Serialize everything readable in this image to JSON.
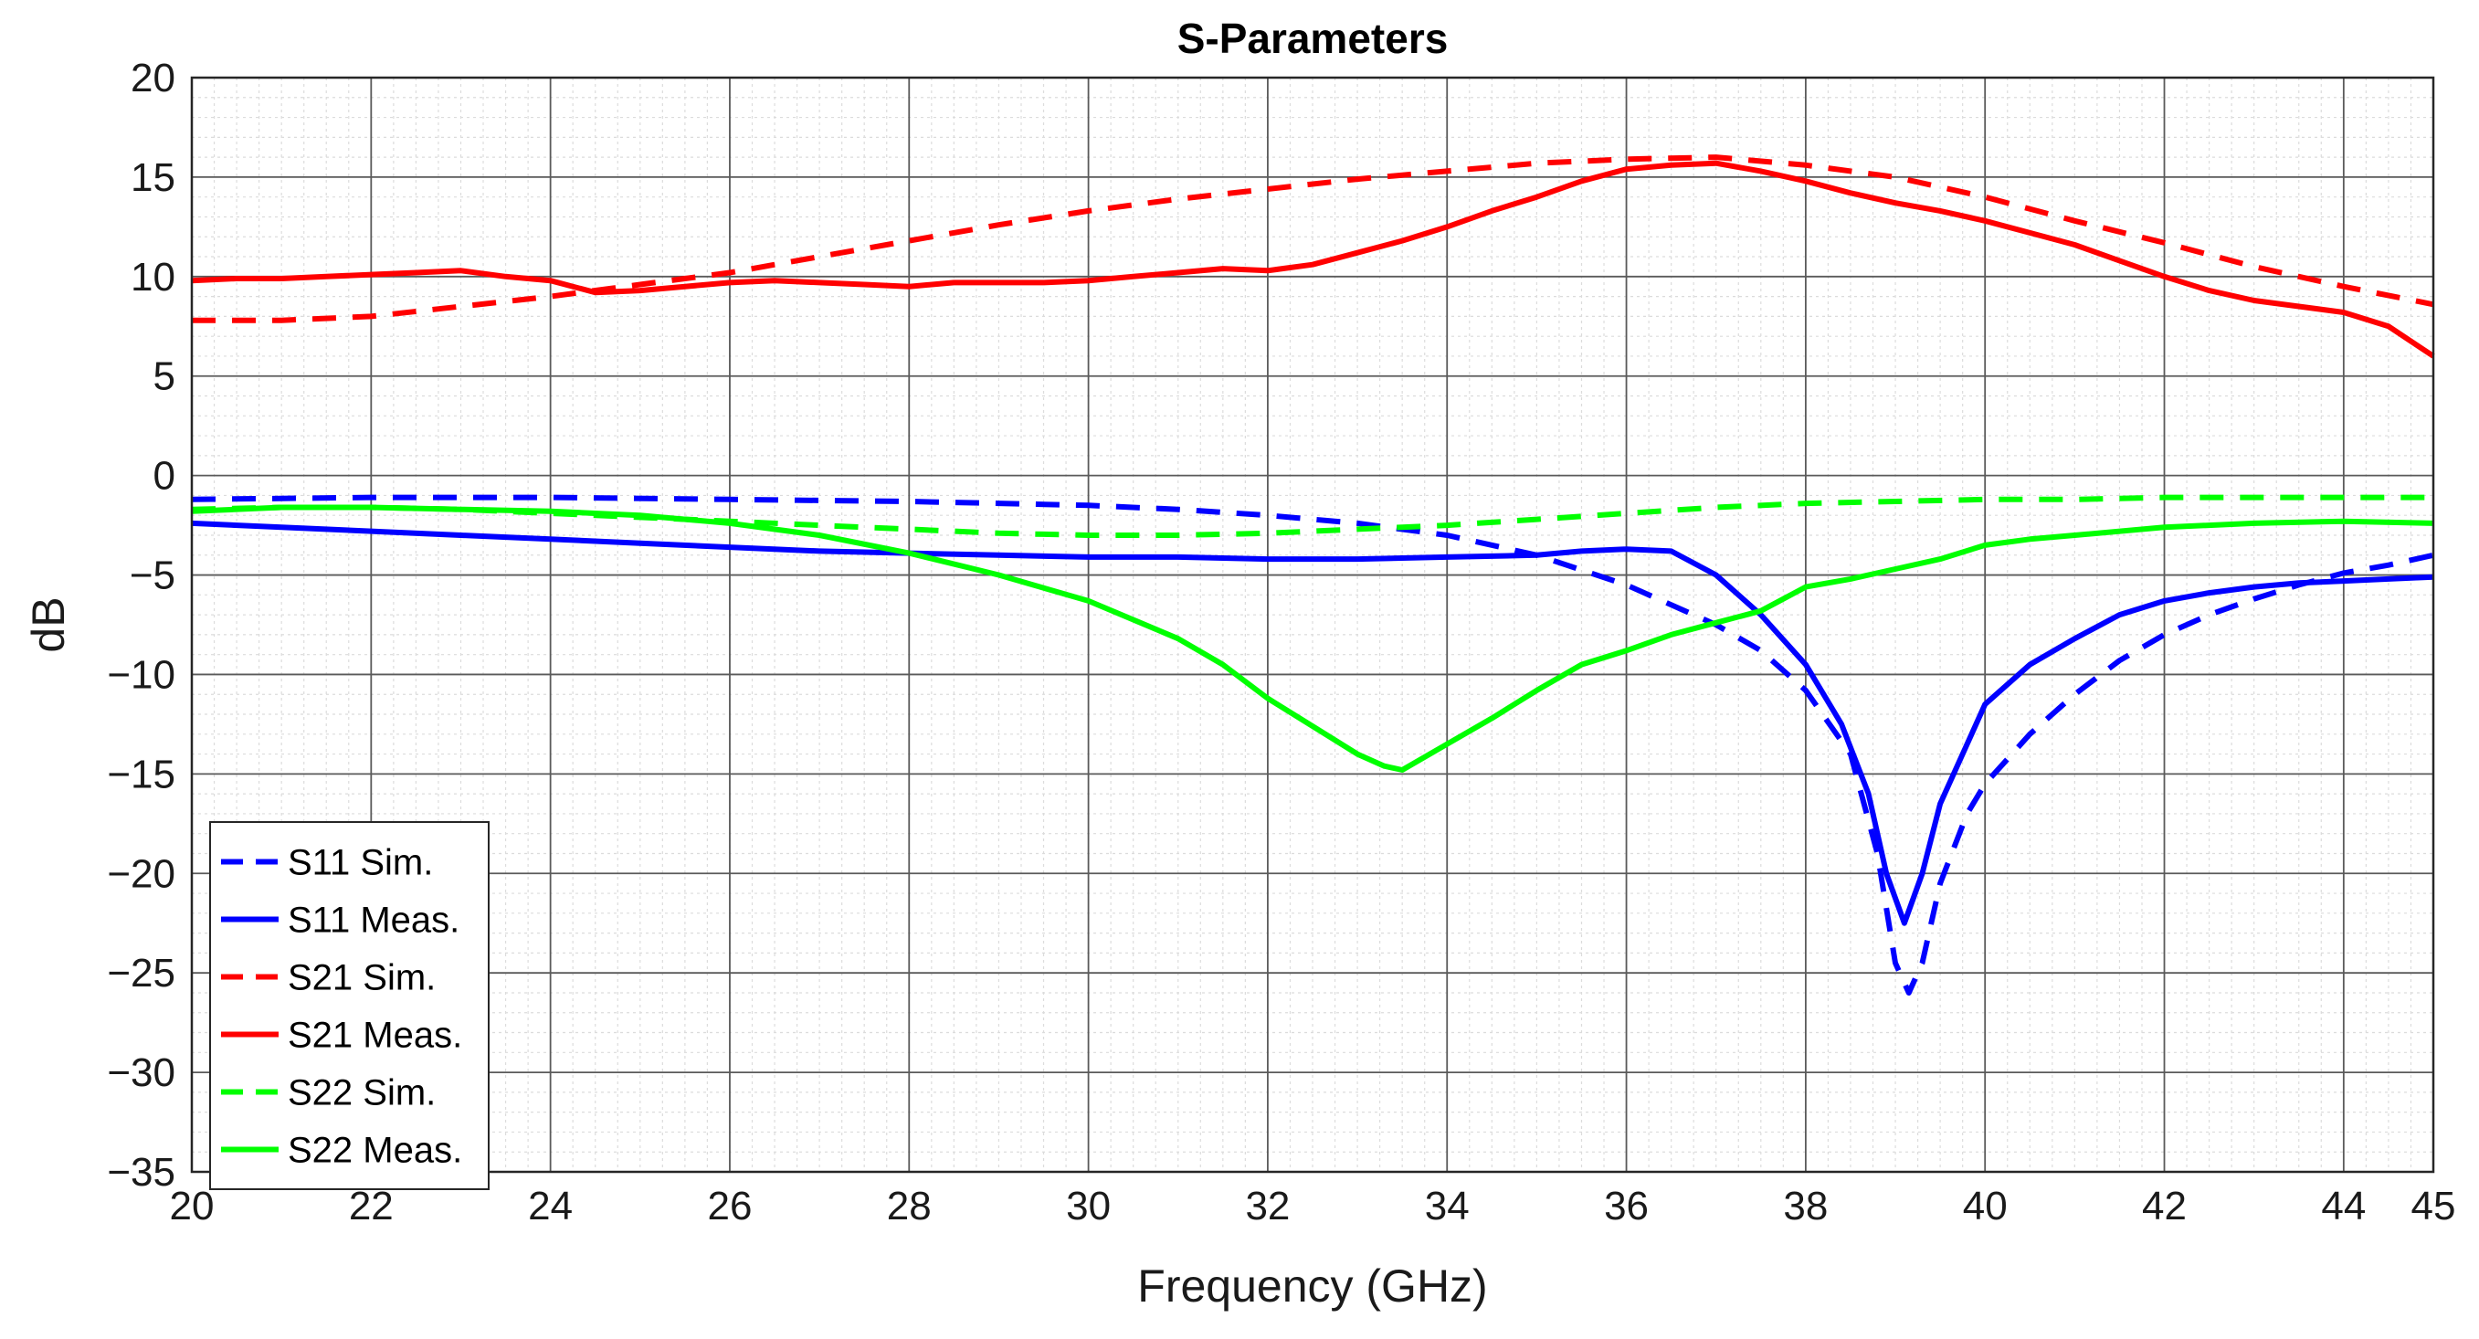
{
  "chart_data": {
    "type": "line",
    "title": "S-Parameters",
    "xlabel": "Frequency (GHz)",
    "ylabel": "dB",
    "xlim": [
      20,
      45
    ],
    "ylim": [
      -35,
      20
    ],
    "x_ticks": [
      20,
      22,
      24,
      26,
      28,
      30,
      32,
      34,
      36,
      38,
      40,
      42,
      44,
      45
    ],
    "x_tick_labels": [
      "20",
      "22",
      "24",
      "26",
      "28",
      "30",
      "32",
      "34",
      "36",
      "38",
      "40",
      "42",
      "44",
      "45"
    ],
    "y_ticks": [
      -35,
      -30,
      -25,
      -20,
      -15,
      -10,
      -5,
      0,
      5,
      10,
      15,
      20
    ],
    "y_tick_labels": [
      "−35",
      "−30",
      "−25",
      "−20",
      "−15",
      "−10",
      "−5",
      "0",
      "5",
      "10",
      "15",
      "20"
    ],
    "grid": true,
    "minor_grid": true,
    "legend_position": "bottom-left",
    "series": [
      {
        "name": "S11 Sim.",
        "color": "#0000ff",
        "dash": "dashed",
        "points": [
          [
            20,
            -1.2
          ],
          [
            22,
            -1.1
          ],
          [
            24,
            -1.1
          ],
          [
            26,
            -1.2
          ],
          [
            28,
            -1.3
          ],
          [
            29,
            -1.4
          ],
          [
            30,
            -1.5
          ],
          [
            31,
            -1.7
          ],
          [
            32,
            -2.0
          ],
          [
            33,
            -2.4
          ],
          [
            34,
            -3.0
          ],
          [
            35,
            -4.0
          ],
          [
            36,
            -5.5
          ],
          [
            37,
            -7.5
          ],
          [
            37.5,
            -8.8
          ],
          [
            38,
            -10.8
          ],
          [
            38.5,
            -14.0
          ],
          [
            38.8,
            -19.0
          ],
          [
            39.0,
            -24.5
          ],
          [
            39.15,
            -26.0
          ],
          [
            39.3,
            -24.5
          ],
          [
            39.5,
            -20.5
          ],
          [
            39.8,
            -17.0
          ],
          [
            40,
            -15.5
          ],
          [
            40.5,
            -13.0
          ],
          [
            41,
            -11.0
          ],
          [
            41.5,
            -9.3
          ],
          [
            42,
            -8.0
          ],
          [
            42.5,
            -7.0
          ],
          [
            43,
            -6.2
          ],
          [
            43.5,
            -5.5
          ],
          [
            44,
            -4.9
          ],
          [
            44.5,
            -4.5
          ],
          [
            45,
            -4.0
          ]
        ]
      },
      {
        "name": "S11 Meas.",
        "color": "#0000ff",
        "dash": "solid",
        "points": [
          [
            20,
            -2.4
          ],
          [
            21,
            -2.6
          ],
          [
            22,
            -2.8
          ],
          [
            23,
            -3.0
          ],
          [
            24,
            -3.2
          ],
          [
            25,
            -3.4
          ],
          [
            26,
            -3.6
          ],
          [
            27,
            -3.8
          ],
          [
            28,
            -3.9
          ],
          [
            29,
            -4.0
          ],
          [
            30,
            -4.1
          ],
          [
            31,
            -4.1
          ],
          [
            32,
            -4.2
          ],
          [
            33,
            -4.2
          ],
          [
            34,
            -4.1
          ],
          [
            35,
            -4.0
          ],
          [
            35.5,
            -3.8
          ],
          [
            36,
            -3.7
          ],
          [
            36.5,
            -3.8
          ],
          [
            37,
            -5.0
          ],
          [
            37.5,
            -7.0
          ],
          [
            38,
            -9.5
          ],
          [
            38.4,
            -12.5
          ],
          [
            38.7,
            -16.0
          ],
          [
            38.9,
            -20.0
          ],
          [
            39.1,
            -22.5
          ],
          [
            39.3,
            -20.0
          ],
          [
            39.5,
            -16.5
          ],
          [
            39.8,
            -13.5
          ],
          [
            40,
            -11.5
          ],
          [
            40.5,
            -9.5
          ],
          [
            41,
            -8.2
          ],
          [
            41.5,
            -7.0
          ],
          [
            42,
            -6.3
          ],
          [
            42.5,
            -5.9
          ],
          [
            43,
            -5.6
          ],
          [
            43.5,
            -5.4
          ],
          [
            44,
            -5.3
          ],
          [
            44.5,
            -5.2
          ],
          [
            45,
            -5.1
          ]
        ]
      },
      {
        "name": "S21 Sim.",
        "color": "#ff0000",
        "dash": "dashed",
        "points": [
          [
            20,
            7.8
          ],
          [
            21,
            7.8
          ],
          [
            22,
            8.0
          ],
          [
            23,
            8.5
          ],
          [
            24,
            9.0
          ],
          [
            25,
            9.6
          ],
          [
            26,
            10.2
          ],
          [
            27,
            11.0
          ],
          [
            28,
            11.8
          ],
          [
            29,
            12.6
          ],
          [
            30,
            13.3
          ],
          [
            31,
            13.9
          ],
          [
            32,
            14.4
          ],
          [
            33,
            14.9
          ],
          [
            34,
            15.3
          ],
          [
            35,
            15.7
          ],
          [
            36,
            15.9
          ],
          [
            37,
            16.0
          ],
          [
            38,
            15.6
          ],
          [
            39,
            15.0
          ],
          [
            40,
            14.0
          ],
          [
            41,
            12.8
          ],
          [
            42,
            11.7
          ],
          [
            43,
            10.5
          ],
          [
            44,
            9.5
          ],
          [
            45,
            8.6
          ]
        ]
      },
      {
        "name": "S21 Meas.",
        "color": "#ff0000",
        "dash": "solid",
        "points": [
          [
            20,
            9.8
          ],
          [
            20.5,
            9.9
          ],
          [
            21,
            9.9
          ],
          [
            21.5,
            10.0
          ],
          [
            22,
            10.1
          ],
          [
            22.5,
            10.2
          ],
          [
            23,
            10.3
          ],
          [
            23.5,
            10.0
          ],
          [
            24,
            9.8
          ],
          [
            24.5,
            9.2
          ],
          [
            25,
            9.3
          ],
          [
            25.5,
            9.5
          ],
          [
            26,
            9.7
          ],
          [
            26.5,
            9.8
          ],
          [
            27,
            9.7
          ],
          [
            27.5,
            9.6
          ],
          [
            28,
            9.5
          ],
          [
            28.5,
            9.7
          ],
          [
            29,
            9.7
          ],
          [
            29.5,
            9.7
          ],
          [
            30,
            9.8
          ],
          [
            30.5,
            10.0
          ],
          [
            31,
            10.2
          ],
          [
            31.5,
            10.4
          ],
          [
            32,
            10.3
          ],
          [
            32.5,
            10.6
          ],
          [
            33,
            11.2
          ],
          [
            33.5,
            11.8
          ],
          [
            34,
            12.5
          ],
          [
            34.5,
            13.3
          ],
          [
            35,
            14.0
          ],
          [
            35.5,
            14.8
          ],
          [
            36,
            15.4
          ],
          [
            36.5,
            15.6
          ],
          [
            37,
            15.7
          ],
          [
            37.5,
            15.3
          ],
          [
            38,
            14.8
          ],
          [
            38.5,
            14.2
          ],
          [
            39,
            13.7
          ],
          [
            39.5,
            13.3
          ],
          [
            40,
            12.8
          ],
          [
            40.5,
            12.2
          ],
          [
            41,
            11.6
          ],
          [
            41.5,
            10.8
          ],
          [
            42,
            10.0
          ],
          [
            42.5,
            9.3
          ],
          [
            43,
            8.8
          ],
          [
            43.5,
            8.5
          ],
          [
            44,
            8.2
          ],
          [
            44.5,
            7.5
          ],
          [
            45,
            6.0
          ]
        ]
      },
      {
        "name": "S22 Sim.",
        "color": "#00ff00",
        "dash": "dashed",
        "points": [
          [
            20,
            -1.7
          ],
          [
            21,
            -1.6
          ],
          [
            22,
            -1.6
          ],
          [
            23,
            -1.7
          ],
          [
            24,
            -1.9
          ],
          [
            25,
            -2.1
          ],
          [
            26,
            -2.3
          ],
          [
            27,
            -2.5
          ],
          [
            28,
            -2.7
          ],
          [
            29,
            -2.9
          ],
          [
            30,
            -3.0
          ],
          [
            31,
            -3.0
          ],
          [
            32,
            -2.9
          ],
          [
            33,
            -2.7
          ],
          [
            34,
            -2.5
          ],
          [
            35,
            -2.2
          ],
          [
            36,
            -1.9
          ],
          [
            37,
            -1.6
          ],
          [
            38,
            -1.4
          ],
          [
            39,
            -1.3
          ],
          [
            40,
            -1.2
          ],
          [
            41,
            -1.2
          ],
          [
            42,
            -1.1
          ],
          [
            43,
            -1.1
          ],
          [
            44,
            -1.1
          ],
          [
            45,
            -1.1
          ]
        ]
      },
      {
        "name": "S22 Meas.",
        "color": "#00ff00",
        "dash": "solid",
        "points": [
          [
            20,
            -1.8
          ],
          [
            21,
            -1.6
          ],
          [
            22,
            -1.6
          ],
          [
            23,
            -1.7
          ],
          [
            24,
            -1.8
          ],
          [
            25,
            -2.0
          ],
          [
            26,
            -2.4
          ],
          [
            27,
            -3.0
          ],
          [
            28,
            -3.9
          ],
          [
            29,
            -5.0
          ],
          [
            30,
            -6.3
          ],
          [
            31,
            -8.2
          ],
          [
            31.5,
            -9.5
          ],
          [
            32,
            -11.2
          ],
          [
            32.5,
            -12.6
          ],
          [
            33,
            -14.0
          ],
          [
            33.3,
            -14.6
          ],
          [
            33.5,
            -14.8
          ],
          [
            34,
            -13.5
          ],
          [
            34.5,
            -12.2
          ],
          [
            35,
            -10.8
          ],
          [
            35.5,
            -9.5
          ],
          [
            36,
            -8.8
          ],
          [
            36.5,
            -8.0
          ],
          [
            37,
            -7.4
          ],
          [
            37.5,
            -6.8
          ],
          [
            38,
            -5.6
          ],
          [
            38.5,
            -5.2
          ],
          [
            39,
            -4.7
          ],
          [
            39.5,
            -4.2
          ],
          [
            40,
            -3.5
          ],
          [
            40.5,
            -3.2
          ],
          [
            41,
            -3.0
          ],
          [
            42,
            -2.6
          ],
          [
            43,
            -2.4
          ],
          [
            44,
            -2.3
          ],
          [
            45,
            -2.4
          ]
        ]
      }
    ]
  }
}
